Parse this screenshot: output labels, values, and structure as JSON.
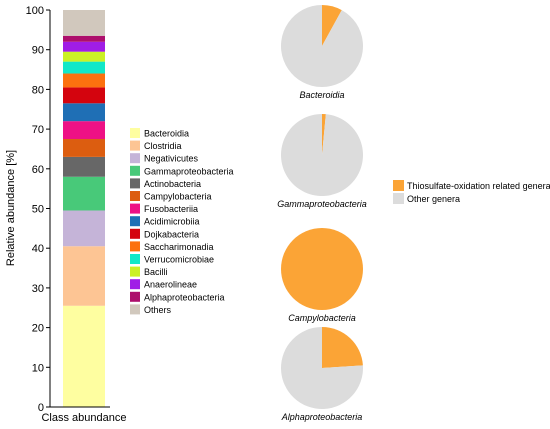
{
  "chart_data": [
    {
      "type": "bar",
      "stacked": true,
      "categories": [
        "Class abundance"
      ],
      "ylabel": "Relative abundance [%]",
      "ylim": [
        0,
        100
      ],
      "yticks": [
        0,
        10,
        20,
        30,
        40,
        50,
        60,
        70,
        80,
        90,
        100
      ],
      "legend_position": "right of bar",
      "series": [
        {
          "name": "Bacteroidia",
          "value": 25.5,
          "color": "#fefea0"
        },
        {
          "name": "Clostridia",
          "value": 15.0,
          "color": "#fdc594"
        },
        {
          "name": "Negativicutes",
          "value": 9.0,
          "color": "#c5b4d8"
        },
        {
          "name": "Gammaproteobacteria",
          "value": 8.5,
          "color": "#48c979"
        },
        {
          "name": "Actinobacteria",
          "value": 5.0,
          "color": "#676767"
        },
        {
          "name": "Campylobacteria",
          "value": 4.5,
          "color": "#dc5d10"
        },
        {
          "name": "Fusobacteriia",
          "value": 4.5,
          "color": "#ee1185"
        },
        {
          "name": "Acidimicrobiia",
          "value": 4.5,
          "color": "#1f6fb5"
        },
        {
          "name": "Dojkabacteria",
          "value": 4.0,
          "color": "#d4040e"
        },
        {
          "name": "Saccharimonadia",
          "value": 3.5,
          "color": "#fc710f"
        },
        {
          "name": "Verrucomicrobiae",
          "value": 3.0,
          "color": "#12e8c8"
        },
        {
          "name": "Bacilli",
          "value": 2.5,
          "color": "#cbf125"
        },
        {
          "name": "Anaerolineae",
          "value": 2.5,
          "color": "#a01de6"
        },
        {
          "name": "Alphaproteobacteria",
          "value": 1.5,
          "color": "#ad0f6c"
        },
        {
          "name": "Others",
          "value": 6.5,
          "color": "#d1c8bd"
        }
      ]
    },
    {
      "type": "pie",
      "legend": [
        {
          "name": "Thiosulfate-oxidation related genera",
          "color": "#fba436"
        },
        {
          "name": "Other genera",
          "color": "#dcdcdc"
        }
      ],
      "pies": [
        {
          "label": "Bacteroidia",
          "values": [
            8,
            92
          ]
        },
        {
          "label": "Gammaproteobacteria",
          "values": [
            1.5,
            98.5
          ]
        },
        {
          "label": "Campylobacteria",
          "values": [
            100,
            0
          ]
        },
        {
          "label": "Alphaproteobacteria",
          "values": [
            24,
            76
          ]
        }
      ]
    }
  ]
}
